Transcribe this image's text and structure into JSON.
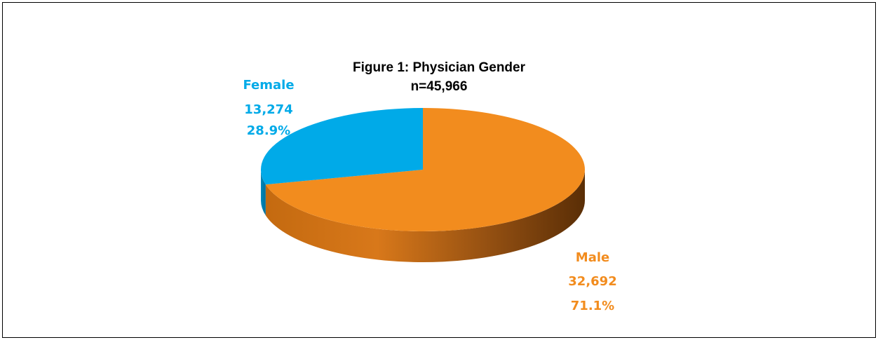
{
  "chart_data": {
    "type": "pie",
    "title": "Figure 1:  Physician Gender",
    "subtitle": "n=45,966",
    "categories": [
      "Female",
      "Male"
    ],
    "values": [
      13274,
      32692
    ],
    "value_labels": [
      "13,274",
      "32,692"
    ],
    "percents": [
      28.9,
      71.1
    ],
    "percent_labels": [
      "28.9%",
      "71.1%"
    ],
    "colors": [
      "#00aae8",
      "#f28c1e"
    ]
  }
}
